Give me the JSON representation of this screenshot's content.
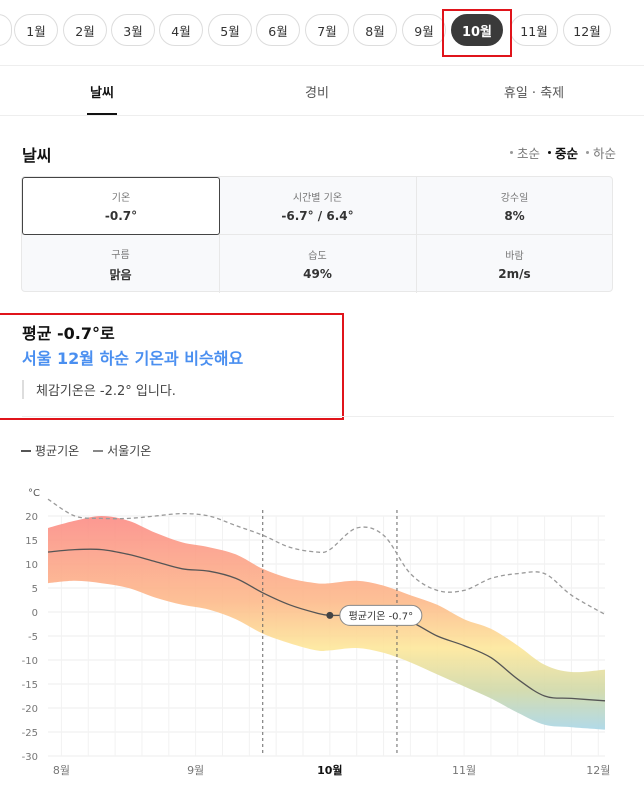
{
  "months": {
    "items": [
      {
        "label": "1월",
        "active": false
      },
      {
        "label": "2월",
        "active": false
      },
      {
        "label": "3월",
        "active": false
      },
      {
        "label": "4월",
        "active": false
      },
      {
        "label": "5월",
        "active": false
      },
      {
        "label": "6월",
        "active": false
      },
      {
        "label": "7월",
        "active": false
      },
      {
        "label": "8월",
        "active": false
      },
      {
        "label": "9월",
        "active": false
      },
      {
        "label": "10월",
        "active": true
      },
      {
        "label": "11월",
        "active": false
      },
      {
        "label": "12월",
        "active": false
      }
    ]
  },
  "tabs": [
    {
      "label": "날씨",
      "active": true
    },
    {
      "label": "경비",
      "active": false
    },
    {
      "label": "휴일 · 축제",
      "active": false
    }
  ],
  "weather": {
    "title": "날씨",
    "periods": [
      {
        "label": "초순",
        "active": false
      },
      {
        "label": "중순",
        "active": true
      },
      {
        "label": "하순",
        "active": false
      }
    ],
    "stats": [
      {
        "label": "기온",
        "value": "-0.7°"
      },
      {
        "label": "시간별 기온",
        "value": "-6.7° / 6.4°"
      },
      {
        "label": "강수일",
        "value": "8%"
      },
      {
        "label": "구름",
        "value": "맑음"
      },
      {
        "label": "습도",
        "value": "49%"
      },
      {
        "label": "바람",
        "value": "2m/s"
      }
    ]
  },
  "summary": {
    "title": "평균 -0.7°로",
    "subtitle": "서울 12월 하순 기온과 비슷해요",
    "note": "체감기온은 -2.2° 입니다."
  },
  "legend": {
    "avg": "평균기온",
    "seoul": "서울기온"
  },
  "chart_data": {
    "type": "area",
    "unit_label": "°C",
    "y_ticks": [
      20,
      15,
      10,
      5,
      0,
      -5,
      -10,
      -15,
      -20,
      -25,
      -30
    ],
    "ylim": [
      -30,
      20
    ],
    "x_tick_labels": [
      {
        "label": "8월",
        "x": 8.0,
        "bold": false
      },
      {
        "label": "9월",
        "x": 9.0,
        "bold": false
      },
      {
        "label": "10월",
        "x": 10.0,
        "bold": true
      },
      {
        "label": "11월",
        "x": 11.0,
        "bold": false
      },
      {
        "label": "12월",
        "x": 12.0,
        "bold": false
      }
    ],
    "xlim": [
      7.9,
      12.05
    ],
    "avg_line": {
      "x": [
        7.9,
        8.1,
        8.3,
        8.5,
        8.7,
        8.9,
        9.1,
        9.3,
        9.5,
        9.7,
        9.9,
        10.0,
        10.2,
        10.4,
        10.6,
        10.8,
        11.0,
        11.2,
        11.4,
        11.6,
        11.8,
        12.05
      ],
      "y": [
        12.5,
        13.0,
        13.0,
        12.0,
        10.5,
        9.0,
        8.5,
        7.0,
        4.0,
        1.5,
        -0.2,
        -0.7,
        -0.6,
        -0.5,
        -2.0,
        -5.0,
        -7.0,
        -9.5,
        -14.0,
        -17.5,
        -18.0,
        -18.5
      ]
    },
    "band_upper": {
      "x": [
        7.9,
        8.1,
        8.3,
        8.5,
        8.7,
        8.9,
        9.1,
        9.3,
        9.5,
        9.7,
        9.9,
        10.0,
        10.2,
        10.4,
        10.6,
        10.8,
        11.0,
        11.2,
        11.4,
        11.6,
        11.8,
        12.05
      ],
      "y": [
        17.5,
        19.0,
        20.0,
        19.0,
        16.5,
        14.5,
        13.5,
        12.0,
        9.0,
        7.0,
        6.0,
        6.0,
        6.5,
        5.5,
        3.5,
        1.5,
        -1.5,
        -3.5,
        -7.0,
        -11.0,
        -12.5,
        -12.0
      ]
    },
    "band_lower": {
      "x": [
        7.9,
        8.1,
        8.3,
        8.5,
        8.7,
        8.9,
        9.1,
        9.3,
        9.5,
        9.7,
        9.9,
        10.0,
        10.2,
        10.4,
        10.6,
        10.8,
        11.0,
        11.2,
        11.4,
        11.6,
        11.8,
        12.05
      ],
      "y": [
        6.0,
        6.5,
        6.0,
        5.0,
        3.0,
        1.5,
        0.5,
        -1.5,
        -4.5,
        -6.5,
        -8.0,
        -8.0,
        -7.5,
        -8.5,
        -10.5,
        -13.0,
        -15.5,
        -18.0,
        -21.0,
        -23.5,
        -24.0,
        -24.5
      ]
    },
    "seoul_line": {
      "x": [
        7.9,
        8.1,
        8.3,
        8.5,
        8.7,
        8.9,
        9.1,
        9.3,
        9.5,
        9.7,
        9.9,
        10.0,
        10.2,
        10.4,
        10.6,
        10.8,
        11.0,
        11.2,
        11.4,
        11.6,
        11.8,
        12.05
      ],
      "y": [
        23.5,
        20.0,
        19.5,
        19.5,
        20.0,
        20.5,
        20.0,
        18.0,
        16.0,
        13.5,
        12.5,
        13.0,
        17.5,
        16.0,
        8.0,
        4.5,
        4.5,
        7.0,
        8.0,
        8.0,
        3.5,
        -0.5
      ]
    },
    "vlines_dashed": [
      9.5,
      10.5
    ],
    "marker": {
      "x": 10.0,
      "y": -0.7,
      "label": "평균기온 -0.7°"
    }
  }
}
